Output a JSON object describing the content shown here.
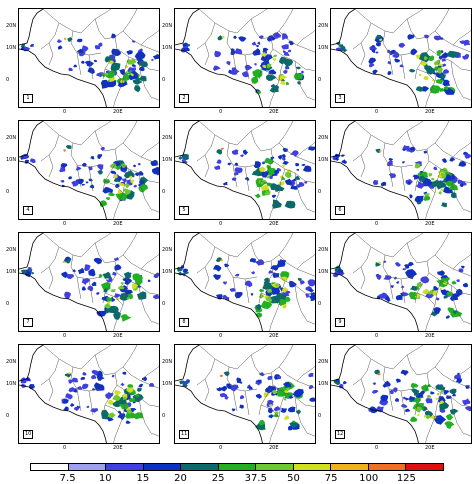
{
  "map": {
    "tick_labels": {
      "lon": [
        "0",
        "20E"
      ],
      "lat": [
        "20N",
        "10N",
        "0"
      ]
    },
    "panels": [
      {
        "label": "1"
      },
      {
        "label": "2"
      },
      {
        "label": "3"
      },
      {
        "label": "4"
      },
      {
        "label": "5"
      },
      {
        "label": "6"
      },
      {
        "label": "7"
      },
      {
        "label": "8"
      },
      {
        "label": "9"
      },
      {
        "label": "10"
      },
      {
        "label": "11"
      },
      {
        "label": "12"
      }
    ]
  },
  "colorbar": {
    "labels": [
      "7.5",
      "10",
      "15",
      "20",
      "25",
      "37.5",
      "50",
      "75",
      "100",
      "125"
    ],
    "colors": [
      "#ffffff",
      "#a0a0f0",
      "#4040e0",
      "#1030c0",
      "#0a6a6a",
      "#20b020",
      "#70c830",
      "#d0e020",
      "#f0b020",
      "#f07020",
      "#e01010"
    ]
  }
}
